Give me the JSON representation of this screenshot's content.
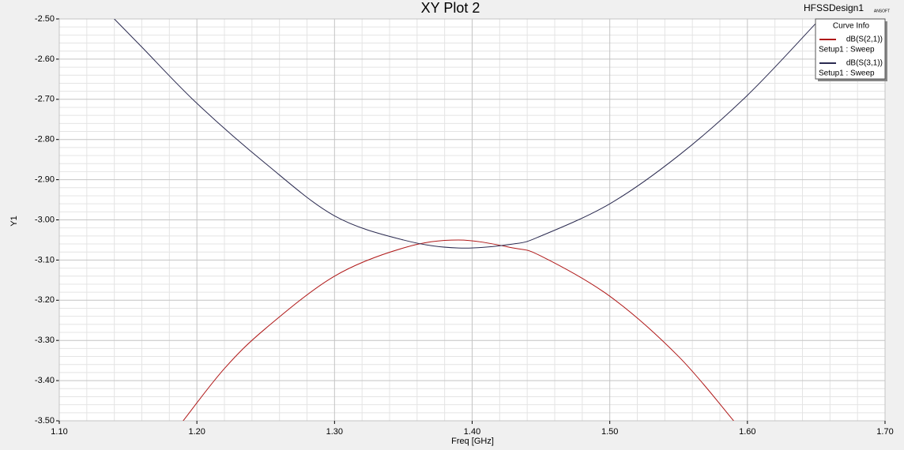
{
  "chart_data": {
    "type": "line",
    "title": "XY Plot 2",
    "design": "HFSSDesign1",
    "brand": "ANSOFT",
    "x_label": "Freq [GHz]",
    "y_label": "Y1",
    "legend_title": "Curve Info",
    "xlim": [
      1.1,
      1.7
    ],
    "xticks": [
      {
        "value": 1.1,
        "label": "1.10"
      },
      {
        "value": 1.2,
        "label": "1.20"
      },
      {
        "value": 1.3,
        "label": "1.30"
      },
      {
        "value": 1.4,
        "label": "1.40"
      },
      {
        "value": 1.5,
        "label": "1.50"
      },
      {
        "value": 1.6,
        "label": "1.60"
      },
      {
        "value": 1.7,
        "label": "1.70"
      }
    ],
    "ylim": [
      -3.5,
      -2.5
    ],
    "yticks": [
      {
        "value": -2.5,
        "label": "-2.50"
      },
      {
        "value": -2.6,
        "label": "-2.60"
      },
      {
        "value": -2.7,
        "label": "-2.70"
      },
      {
        "value": -2.8,
        "label": "-2.80"
      },
      {
        "value": -2.9,
        "label": "-2.90"
      },
      {
        "value": -3.0,
        "label": "-3.00"
      },
      {
        "value": -3.1,
        "label": "-3.10"
      },
      {
        "value": -3.2,
        "label": "-3.20"
      },
      {
        "value": -3.3,
        "label": "-3.30"
      },
      {
        "value": -3.4,
        "label": "-3.40"
      },
      {
        "value": -3.5,
        "label": "-3.50"
      }
    ],
    "grid": true,
    "minor_grid": true,
    "legend": "upper-right",
    "series": [
      {
        "name": "dB(S(2,1))",
        "solution": "Setup1 : Sweep",
        "color": "#b01818",
        "x": [
          1.19,
          1.22,
          1.25,
          1.3,
          1.35,
          1.39,
          1.43,
          1.45,
          1.5,
          1.55,
          1.59
        ],
        "values": [
          -3.5,
          -3.37,
          -3.27,
          -3.14,
          -3.07,
          -3.05,
          -3.07,
          -3.09,
          -3.19,
          -3.34,
          -3.5
        ]
      },
      {
        "name": "dB(S(3,1))",
        "solution": "Setup1 : Sweep",
        "color": "#2a2a50",
        "x": [
          1.14,
          1.16,
          1.2,
          1.25,
          1.3,
          1.35,
          1.39,
          1.43,
          1.45,
          1.5,
          1.55,
          1.6,
          1.65
        ],
        "values": [
          -2.5,
          -2.57,
          -2.71,
          -2.86,
          -2.99,
          -3.05,
          -3.07,
          -3.06,
          -3.04,
          -2.96,
          -2.84,
          -2.69,
          -2.51
        ]
      }
    ]
  }
}
